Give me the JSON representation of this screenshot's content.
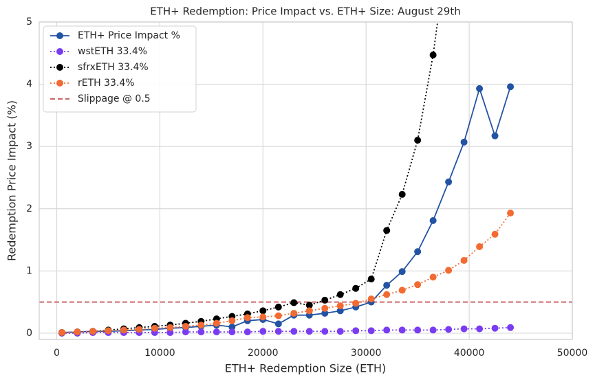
{
  "chart_data": {
    "type": "line",
    "title": "ETH+ Redemption: Price Impact vs. ETH+ Size: August 29th",
    "x_label": "ETH+ Redemption Size (ETH)",
    "y_label": "Redemption Price Impact (%)",
    "x": [
      500,
      2000,
      3500,
      5000,
      6500,
      8000,
      9500,
      11000,
      12500,
      14000,
      15500,
      17000,
      18500,
      20000,
      21500,
      23000,
      24500,
      26000,
      27500,
      29000,
      30500,
      32000,
      33500,
      35000,
      36500,
      38000,
      39500,
      41000,
      42500,
      44000
    ],
    "series": [
      {
        "name": "ETH+ Price Impact %",
        "color": "#2353a3",
        "linestyle": "solid",
        "values": [
          0.01,
          0.02,
          0.03,
          0.03,
          0.04,
          0.05,
          0.06,
          0.08,
          0.09,
          0.11,
          0.13,
          0.1,
          0.2,
          0.22,
          0.15,
          0.29,
          0.29,
          0.32,
          0.36,
          0.42,
          0.5,
          0.77,
          0.99,
          1.31,
          1.81,
          2.43,
          3.07,
          3.93,
          3.17,
          3.96
        ]
      },
      {
        "name": "wstETH 33.4%",
        "color": "#7a3cf0",
        "linestyle": "dotted",
        "values": [
          0,
          0,
          0.01,
          0.01,
          0.01,
          0.01,
          0.01,
          0.01,
          0.02,
          0.02,
          0.02,
          0.02,
          0.02,
          0.03,
          0.03,
          0.03,
          0.03,
          0.03,
          0.03,
          0.04,
          0.04,
          0.05,
          0.05,
          0.05,
          0.05,
          0.06,
          0.07,
          0.07,
          0.08,
          0.09
        ]
      },
      {
        "name": "sfrxETH 33.4%",
        "color": "#000000",
        "linestyle": "dotted",
        "values": [
          0.01,
          0.02,
          0.03,
          0.05,
          0.07,
          0.09,
          0.11,
          0.13,
          0.16,
          0.19,
          0.23,
          0.27,
          0.31,
          0.36,
          0.42,
          0.49,
          0.45,
          0.53,
          0.62,
          0.72,
          0.87,
          1.65,
          2.23,
          3.1,
          4.47,
          6.3,
          null,
          null,
          null,
          null
        ]
      },
      {
        "name": "rETH 33.4%",
        "color": "#f26b32",
        "linestyle": "dotted",
        "values": [
          0.01,
          0.02,
          0.03,
          0.04,
          0.05,
          0.06,
          0.08,
          0.09,
          0.11,
          0.13,
          0.16,
          0.2,
          0.25,
          0.26,
          0.28,
          0.32,
          0.36,
          0.4,
          0.44,
          0.48,
          0.55,
          0.62,
          0.69,
          0.78,
          0.9,
          1.01,
          1.17,
          1.39,
          1.59,
          1.93
        ]
      }
    ],
    "hlines": [
      {
        "name": "Slippage @ 0.5",
        "value": 0.5,
        "color": "#c44e52",
        "linestyle": "dashed"
      }
    ],
    "xlim": [
      -1700,
      50000
    ],
    "ylim": [
      -0.1,
      5
    ],
    "xticks": [
      0,
      10000,
      20000,
      30000,
      40000,
      50000
    ],
    "yticks": [
      0,
      1,
      2,
      3,
      4,
      5
    ],
    "grid": true,
    "legend": "upper-left"
  }
}
